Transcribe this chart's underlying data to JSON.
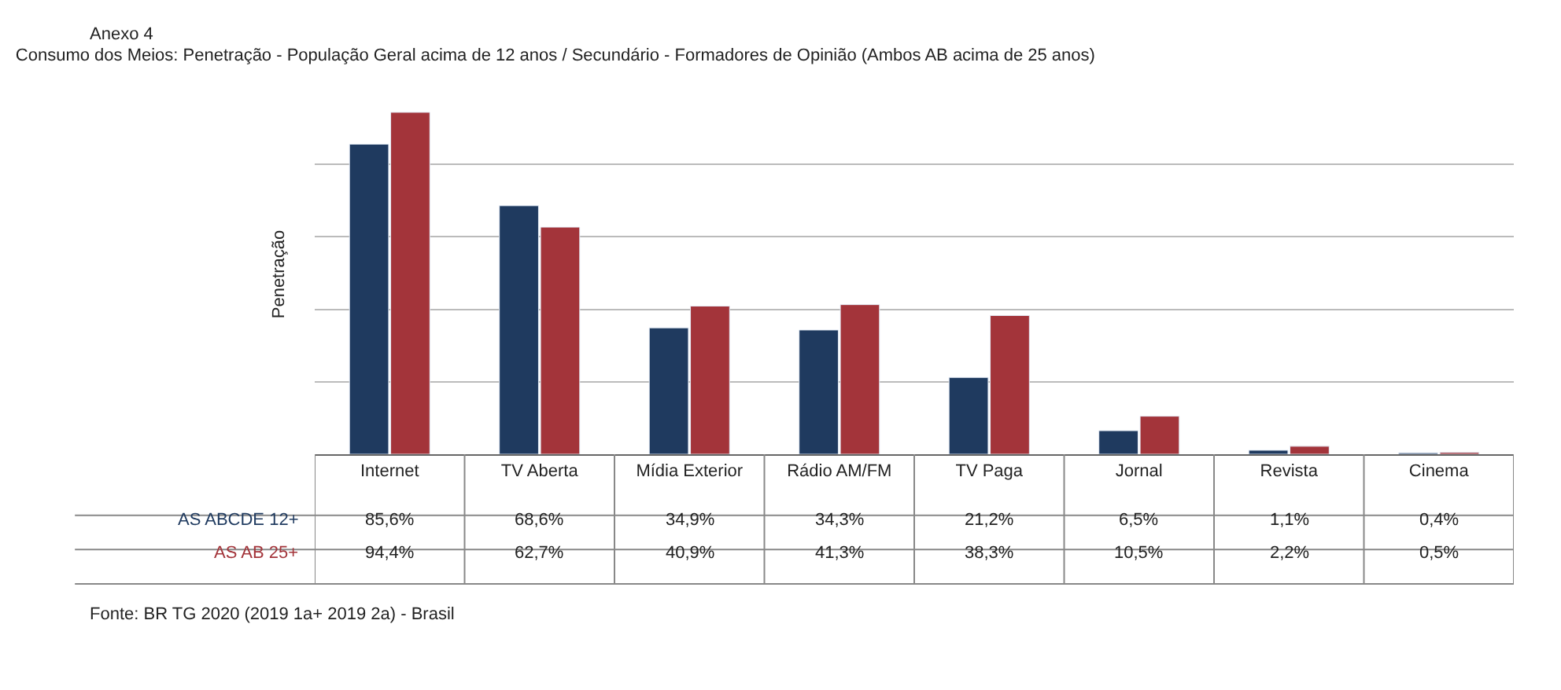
{
  "chart_data": {
    "type": "bar",
    "title": "Consumo dos Meios: Penetração - População Geral acima de 12 anos / Secundário - Formadores de Opinião (Ambos AB acima de 25 anos)",
    "ylabel": "Penetração",
    "categories": [
      "Internet",
      "TV Aberta",
      "Mídia Exterior",
      "Rádio AM/FM",
      "TV Paga",
      "Jornal",
      "Revista",
      "Cinema"
    ],
    "series": [
      {
        "name": "AS ABCDE 12+",
        "color": "#1f3a5f",
        "values": [
          85.6,
          68.6,
          34.9,
          34.3,
          21.2,
          6.5,
          1.1,
          0.4
        ],
        "value_labels": [
          "85,6%",
          "68,6%",
          "34,9%",
          "34,3%",
          "21,2%",
          "6,5%",
          "1,1%",
          "0,4%"
        ]
      },
      {
        "name": "AS AB 25+",
        "color": "#a3343a",
        "values": [
          94.4,
          62.7,
          40.9,
          41.3,
          38.3,
          10.5,
          2.2,
          0.5
        ],
        "value_labels": [
          "94,4%",
          "62,7%",
          "40,9%",
          "41,3%",
          "38,3%",
          "10,5%",
          "2,2%",
          "0,5%"
        ]
      }
    ],
    "annotations": [
      "Anexo 4",
      "Fonte: BR TG 2020 (2019 1a+ 2019 2a) - Brasil"
    ],
    "grid": "y",
    "tick_labels": "x",
    "legend": false
  }
}
